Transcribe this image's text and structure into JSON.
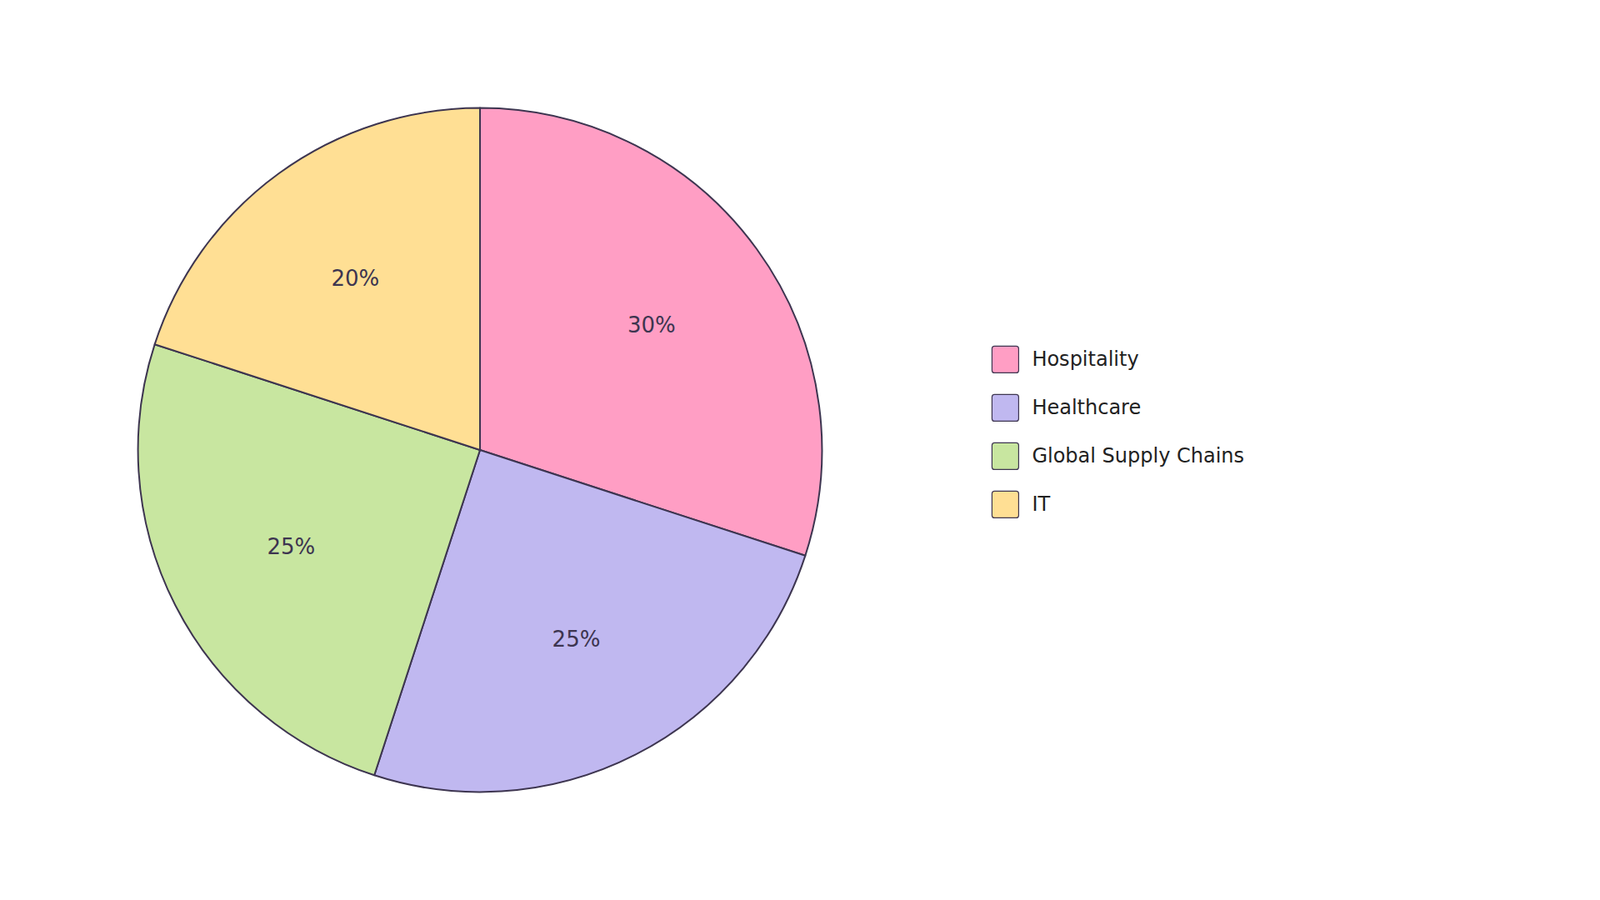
{
  "chart_data": {
    "type": "pie",
    "categories": [
      "Hospitality",
      "Healthcare",
      "Global Supply Chains",
      "IT"
    ],
    "values": [
      30,
      25,
      25,
      20
    ],
    "value_labels": [
      "30%",
      "25%",
      "25%",
      "20%"
    ],
    "colors": [
      "#FF9EC4",
      "#C0B8F0",
      "#C8E6A0",
      "#FFDF94"
    ],
    "data_labels": true,
    "legend": "right"
  }
}
